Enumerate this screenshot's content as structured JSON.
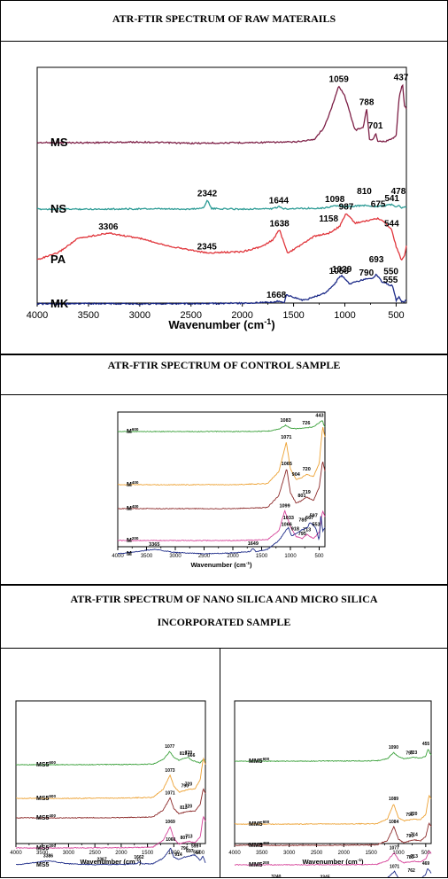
{
  "sections": {
    "raw_title": "ATR-FTIR SPECTRUM OF RAW MATERAILS",
    "control_title": "ATR-FTIR SPECTRUM OF CONTROL SAMPLE",
    "nano_title_line1": "ATR-FTIR SPECTRUM OF NANO SILICA AND MICRO SILICA",
    "nano_title_line2": "INCORPORATED SAMPLE"
  },
  "chart_data": [
    {
      "id": "raw",
      "type": "line",
      "xlabel": "Wavenumber (cm",
      "xlabel_sup": "-1",
      "xlabel_end": ")",
      "xlim": [
        4000,
        400
      ],
      "x_reversed": true,
      "xticks": [
        4000,
        3500,
        3000,
        2500,
        2000,
        1500,
        1000,
        500
      ],
      "grid": false,
      "series": [
        {
          "name": "MS",
          "color": "#7d1f46",
          "x": [
            4000,
            3500,
            3000,
            2500,
            2000,
            1500,
            1300,
            1200,
            1100,
            1059,
            1000,
            900,
            820,
            788,
            760,
            720,
            701,
            680,
            600,
            500,
            470,
            437,
            420,
            400
          ],
          "y": [
            0.0,
            0.0,
            0.01,
            -0.01,
            0.0,
            0.01,
            0.05,
            0.25,
            0.7,
            0.92,
            0.75,
            0.2,
            0.25,
            0.55,
            0.05,
            0.05,
            0.17,
            0.03,
            0.02,
            0.1,
            0.75,
            0.95,
            0.6,
            0.55
          ],
          "peaks": [
            "1059",
            "788",
            "701",
            "437"
          ]
        },
        {
          "name": "NS",
          "color": "#2a9a94",
          "x": [
            4000,
            3500,
            3000,
            2500,
            2380,
            2342,
            2300,
            2000,
            1700,
            1644,
            1600,
            1400,
            1200,
            1098,
            1000,
            810,
            700,
            600,
            541,
            500,
            478,
            450,
            400
          ],
          "y": [
            0.0,
            0.0,
            0.01,
            0.0,
            0.05,
            0.4,
            0.02,
            0.0,
            0.02,
            0.1,
            0.02,
            0.03,
            0.05,
            0.15,
            0.1,
            0.16,
            0.12,
            0.15,
            0.2,
            0.1,
            0.15,
            0.05,
            0.1
          ],
          "peaks": [
            "2342",
            "1644",
            "1098",
            "810",
            "541",
            "478"
          ]
        },
        {
          "name": "PA",
          "color": "#e0343a",
          "x": [
            4000,
            3800,
            3600,
            3306,
            3000,
            2700,
            2345,
            2000,
            1800,
            1700,
            1638,
            1560,
            1500,
            1300,
            1158,
            1100,
            1050,
            987,
            900,
            800,
            675,
            600,
            544,
            500,
            450,
            420,
            400
          ],
          "y": [
            0.0,
            0.1,
            0.32,
            0.4,
            0.32,
            0.2,
            0.1,
            0.12,
            0.2,
            0.3,
            0.45,
            0.1,
            0.15,
            0.35,
            0.4,
            0.45,
            0.5,
            0.7,
            0.55,
            0.58,
            0.62,
            0.55,
            0.45,
            0.2,
            0.0,
            0.05,
            0.2
          ],
          "peaks": [
            "3306",
            "2345",
            "1638",
            "1158",
            "987",
            "675",
            "544"
          ]
        },
        {
          "name": "MK",
          "color": "#1d2b88",
          "x": [
            4000,
            3500,
            3000,
            2500,
            2000,
            1700,
            1668,
            1620,
            1590,
            1570,
            1400,
            1200,
            1100,
            1058,
            1029,
            950,
            900,
            790,
            720,
            693,
            640,
            600,
            555,
            540,
            520,
            500,
            470,
            440,
            400
          ],
          "y": [
            0.0,
            0.01,
            0.0,
            0.01,
            0.02,
            0.05,
            0.08,
            0.05,
            0.04,
            0.25,
            0.1,
            0.3,
            0.55,
            0.75,
            0.8,
            0.55,
            0.62,
            0.7,
            0.72,
            0.85,
            0.62,
            0.6,
            0.5,
            0.55,
            0.35,
            0.1,
            0.2,
            0.05,
            0.1
          ],
          "peaks": [
            "1058",
            "1029",
            "790",
            "693",
            "555",
            "550",
            "1668"
          ]
        }
      ]
    },
    {
      "id": "control",
      "type": "line",
      "xlabel": "Wavenumber (cm",
      "xlabel_sup": "-1",
      "xlabel_end": ")",
      "xlim": [
        4000,
        400
      ],
      "x_reversed": true,
      "xticks": [
        4000,
        3500,
        3000,
        2500,
        2000,
        1500,
        1000,
        500
      ],
      "grid": false,
      "series": [
        {
          "name": "M",
          "sup": "600",
          "color": "#3aa03a",
          "x": [
            4000,
            3000,
            2000,
            1400,
            1200,
            1083,
            1000,
            900,
            726,
            600,
            500,
            443,
            420,
            400
          ],
          "y": [
            0.0,
            0.0,
            0.0,
            0.02,
            0.15,
            0.4,
            0.2,
            0.18,
            0.22,
            0.3,
            0.55,
            0.7,
            0.4,
            0.3
          ],
          "peaks": [
            "1083",
            "726",
            "443"
          ]
        },
        {
          "name": "M",
          "sup": "400",
          "color": "#eda234",
          "x": [
            4000,
            3000,
            2000,
            1400,
            1200,
            1071,
            1000,
            904,
            820,
            720,
            600,
            500,
            440,
            400
          ],
          "y": [
            0.0,
            0.0,
            0.0,
            0.02,
            0.25,
            0.8,
            0.3,
            0.1,
            0.12,
            0.2,
            0.15,
            0.4,
            1.1,
            0.9
          ],
          "peaks": [
            "1071",
            "904",
            "720"
          ]
        },
        {
          "name": "M",
          "sup": "400",
          "color": "#8c2a2a",
          "x": [
            4000,
            3000,
            2000,
            1400,
            1200,
            1065,
            1000,
            900,
            801,
            719,
            600,
            500,
            440,
            400
          ],
          "y": [
            0.0,
            0.0,
            0.0,
            0.02,
            0.25,
            0.75,
            0.3,
            0.1,
            0.15,
            0.22,
            0.15,
            0.4,
            0.9,
            0.7
          ],
          "peaks": [
            "1065",
            "801",
            "719"
          ]
        },
        {
          "name": "M",
          "sup": "200",
          "color": "#d6449a",
          "x": [
            4000,
            3000,
            2000,
            1400,
            1200,
            1099,
            1000,
            900,
            795,
            713,
            600,
            500,
            440,
            400
          ],
          "y": [
            0.0,
            0.0,
            0.0,
            0.02,
            0.25,
            0.75,
            0.35,
            0.1,
            0.05,
            0.15,
            0.05,
            0.2,
            0.75,
            0.6
          ],
          "peaks": [
            "1099",
            "795",
            "713"
          ]
        },
        {
          "name": "M",
          "sup": "",
          "color": "#1d2b88",
          "x": [
            4000,
            3365,
            3000,
            2500,
            2000,
            1700,
            1649,
            1600,
            1400,
            1200,
            1066,
            1033,
            980,
            918,
            785,
            700,
            667,
            597,
            553,
            500,
            470,
            440,
            400
          ],
          "y": [
            0.0,
            0.1,
            0.03,
            0.0,
            0.02,
            0.05,
            0.12,
            0.05,
            0.1,
            0.3,
            0.55,
            0.6,
            0.4,
            0.45,
            0.55,
            0.6,
            0.7,
            0.65,
            0.55,
            0.3,
            0.9,
            0.5,
            0.6
          ],
          "peaks": [
            "3365",
            "1649",
            "1066",
            "1033",
            "918",
            "785",
            "667",
            "597",
            "553"
          ]
        }
      ]
    },
    {
      "id": "ms5",
      "type": "line",
      "xlabel": "Wavenumber (cm",
      "xlabel_sup": "-1",
      "xlabel_end": ")",
      "xlim": [
        4000,
        400
      ],
      "x_reversed": true,
      "xticks": [
        4000,
        3500,
        3000,
        2500,
        2000,
        1500,
        1000,
        500
      ],
      "grid": false,
      "series": [
        {
          "name": "MS5",
          "sup": "600",
          "color": "#3aa03a",
          "x": [
            4000,
            3000,
            2000,
            1400,
            1200,
            1077,
            1000,
            900,
            819,
            720,
            666,
            600,
            500,
            440,
            400
          ],
          "y": [
            0.0,
            0.0,
            0.01,
            0.03,
            0.3,
            0.75,
            0.4,
            0.25,
            0.35,
            0.4,
            0.25,
            0.2,
            0.1,
            0.3,
            0.2
          ],
          "peaks": [
            "1077",
            "819",
            "720",
            "666"
          ]
        },
        {
          "name": "MS5",
          "sup": "600",
          "color": "#eda234",
          "x": [
            4000,
            3000,
            2000,
            1400,
            1200,
            1073,
            1000,
            900,
            790,
            720,
            600,
            500,
            440,
            400
          ],
          "y": [
            0.0,
            0.0,
            0.01,
            0.03,
            0.3,
            0.75,
            0.4,
            0.2,
            0.25,
            0.3,
            0.3,
            0.6,
            1.3,
            1.1
          ],
          "peaks": [
            "1073",
            "790",
            "720"
          ]
        },
        {
          "name": "MS5",
          "sup": "400",
          "color": "#8c2a2a",
          "x": [
            4000,
            3000,
            2000,
            1400,
            1200,
            1071,
            1000,
            900,
            813,
            720,
            600,
            500,
            440,
            400
          ],
          "y": [
            0.0,
            0.0,
            0.01,
            0.03,
            0.3,
            0.75,
            0.35,
            0.15,
            0.2,
            0.25,
            0.25,
            0.5,
            1.1,
            0.9
          ],
          "peaks": [
            "1071",
            "813",
            "720"
          ]
        },
        {
          "name": "MS5",
          "sup": "200",
          "color": "#d6449a",
          "x": [
            4000,
            3000,
            2000,
            1400,
            1200,
            1069,
            1000,
            900,
            807,
            713,
            600,
            500,
            440,
            400
          ],
          "y": [
            0.0,
            0.0,
            0.01,
            0.03,
            0.3,
            0.8,
            0.35,
            0.15,
            0.2,
            0.25,
            0.2,
            0.4,
            1.2,
            1.0
          ],
          "peaks": [
            "1069",
            "807",
            "713"
          ]
        },
        {
          "name": "MS5",
          "sup": "",
          "color": "#1d2b88",
          "x": [
            4000,
            3500,
            3386,
            3000,
            2500,
            2367,
            2000,
            1700,
            1662,
            1600,
            1400,
            1200,
            1060,
            1000,
            914,
            796,
            697,
            599,
            563,
            500,
            450,
            400
          ],
          "y": [
            0.0,
            0.15,
            0.18,
            0.05,
            0.0,
            0.02,
            0.02,
            0.05,
            0.12,
            0.05,
            0.05,
            0.3,
            0.75,
            0.35,
            0.25,
            0.35,
            0.4,
            0.45,
            0.35,
            0.2,
            0.4,
            0.1
          ],
          "peaks": [
            "3386",
            "2367",
            "1662",
            "1060",
            "914",
            "796",
            "697",
            "599",
            "563"
          ]
        }
      ]
    },
    {
      "id": "mm5",
      "type": "line",
      "xlabel": "Wavenumber (cm",
      "xlabel_sup": "-1",
      "xlabel_end": ")",
      "xlim": [
        4000,
        400
      ],
      "x_reversed": true,
      "xticks": [
        4000,
        3500,
        3000,
        2500,
        2000,
        1500,
        1000,
        500
      ],
      "grid": false,
      "series": [
        {
          "name": "MM5",
          "sup": "600",
          "color": "#3aa03a",
          "x": [
            4000,
            3000,
            2000,
            1400,
            1200,
            1090,
            1000,
            900,
            797,
            723,
            600,
            500,
            455,
            420,
            400
          ],
          "y": [
            0.0,
            0.0,
            0.01,
            0.03,
            0.2,
            0.7,
            0.35,
            0.2,
            0.25,
            0.3,
            0.25,
            0.4,
            1.0,
            0.6,
            0.5
          ],
          "peaks": [
            "1090",
            "797",
            "723",
            "455"
          ]
        },
        {
          "name": "MM5",
          "sup": "600",
          "color": "#eda234",
          "x": [
            4000,
            3000,
            2000,
            1400,
            1200,
            1089,
            1000,
            900,
            796,
            720,
            600,
            500,
            440,
            400
          ],
          "y": [
            0.0,
            0.0,
            0.01,
            0.03,
            0.5,
            1.9,
            0.6,
            0.3,
            0.4,
            0.5,
            0.4,
            0.9,
            2.7,
            2.4
          ],
          "peaks": [
            "1089",
            "796",
            "720"
          ]
        },
        {
          "name": "MM5",
          "sup": "400",
          "color": "#8c2a2a",
          "x": [
            4000,
            3000,
            2000,
            1400,
            1200,
            1084,
            1000,
            900,
            790,
            714,
            600,
            500,
            440,
            400
          ],
          "y": [
            0.0,
            0.0,
            0.01,
            0.03,
            0.4,
            1.5,
            0.5,
            0.2,
            0.35,
            0.45,
            0.35,
            0.7,
            1.8,
            1.5
          ],
          "peaks": [
            "1084",
            "790",
            "714"
          ]
        },
        {
          "name": "MM5",
          "sup": "200",
          "color": "#d6449a",
          "x": [
            4000,
            3000,
            2000,
            1400,
            1200,
            1077,
            1000,
            900,
            785,
            713,
            600,
            500,
            440,
            400
          ],
          "y": [
            0.0,
            0.0,
            0.01,
            0.03,
            0.3,
            0.85,
            0.35,
            0.15,
            0.2,
            0.25,
            0.2,
            0.4,
            1.0,
            0.8
          ],
          "peaks": [
            "1077",
            "785",
            "713"
          ]
        },
        {
          "name": "MM5",
          "sup": "",
          "color": "#1d2b88",
          "x": [
            4000,
            3500,
            3240,
            3000,
            2500,
            2345,
            2000,
            1700,
            1400,
            1200,
            1071,
            1000,
            900,
            762,
            600,
            500,
            469,
            420,
            400
          ],
          "y": [
            0.0,
            0.03,
            0.05,
            0.02,
            0.0,
            0.02,
            0.0,
            0.02,
            0.03,
            0.3,
            0.7,
            0.3,
            0.15,
            0.2,
            0.2,
            0.5,
            0.9,
            0.7,
            0.6
          ],
          "peaks": [
            "3240",
            "2345",
            "1071",
            "762",
            "469"
          ]
        }
      ]
    }
  ]
}
